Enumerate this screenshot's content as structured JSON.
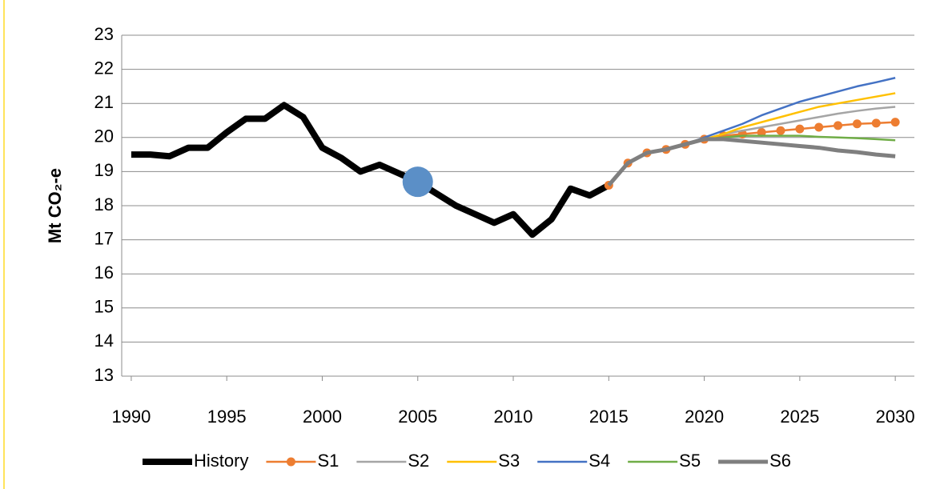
{
  "chart_data": {
    "type": "line",
    "y_label": "Mt CO₂-e",
    "xlim": [
      1989.5,
      2031
    ],
    "ylim": [
      13,
      23
    ],
    "xticks": [
      1990,
      1995,
      2000,
      2005,
      2010,
      2015,
      2020,
      2025,
      2030
    ],
    "yticks": [
      13,
      14,
      15,
      16,
      17,
      18,
      19,
      20,
      21,
      22,
      23
    ],
    "grid": true,
    "legend": "bottom",
    "series": [
      {
        "name": "History",
        "color": "#000000",
        "width": 8,
        "markers": false,
        "x": [
          1990,
          1991,
          1992,
          1993,
          1994,
          1995,
          1996,
          1997,
          1998,
          1999,
          2000,
          2001,
          2002,
          2003,
          2004,
          2005,
          2006,
          2007,
          2008,
          2009,
          2010,
          2011,
          2012,
          2013,
          2014,
          2015
        ],
        "values": [
          19.5,
          19.5,
          19.45,
          19.7,
          19.7,
          20.15,
          20.55,
          20.55,
          20.95,
          20.6,
          19.7,
          19.4,
          19.0,
          19.2,
          18.95,
          18.7,
          18.35,
          18.0,
          17.75,
          17.5,
          17.75,
          17.15,
          17.6,
          18.5,
          18.3,
          18.6
        ]
      },
      {
        "name": "S1",
        "color": "#ed7d31",
        "width": 2.5,
        "markers": true,
        "x": [
          2015,
          2016,
          2017,
          2018,
          2019,
          2020,
          2021,
          2022,
          2023,
          2024,
          2025,
          2026,
          2027,
          2028,
          2029,
          2030
        ],
        "values": [
          18.6,
          19.25,
          19.55,
          19.65,
          19.8,
          19.95,
          20.05,
          20.1,
          20.15,
          20.2,
          20.25,
          20.3,
          20.35,
          20.4,
          20.42,
          20.45
        ]
      },
      {
        "name": "S2",
        "color": "#a5a5a5",
        "width": 2.5,
        "markers": false,
        "x": [
          2015,
          2016,
          2017,
          2018,
          2019,
          2020,
          2021,
          2022,
          2023,
          2024,
          2025,
          2026,
          2027,
          2028,
          2029,
          2030
        ],
        "values": [
          18.6,
          19.25,
          19.55,
          19.65,
          19.8,
          19.95,
          20.1,
          20.2,
          20.3,
          20.4,
          20.5,
          20.6,
          20.7,
          20.78,
          20.85,
          20.9
        ]
      },
      {
        "name": "S3",
        "color": "#ffc000",
        "width": 2.5,
        "markers": false,
        "x": [
          2015,
          2016,
          2017,
          2018,
          2019,
          2020,
          2021,
          2022,
          2023,
          2024,
          2025,
          2026,
          2027,
          2028,
          2029,
          2030
        ],
        "values": [
          18.6,
          19.25,
          19.55,
          19.65,
          19.8,
          19.95,
          20.1,
          20.3,
          20.45,
          20.6,
          20.75,
          20.9,
          21.0,
          21.1,
          21.2,
          21.3
        ]
      },
      {
        "name": "S4",
        "color": "#4472c4",
        "width": 2.5,
        "markers": false,
        "x": [
          2015,
          2016,
          2017,
          2018,
          2019,
          2020,
          2021,
          2022,
          2023,
          2024,
          2025,
          2026,
          2027,
          2028,
          2029,
          2030
        ],
        "values": [
          18.6,
          19.25,
          19.55,
          19.65,
          19.8,
          20.0,
          20.2,
          20.4,
          20.65,
          20.85,
          21.05,
          21.2,
          21.35,
          21.5,
          21.62,
          21.75
        ]
      },
      {
        "name": "S5",
        "color": "#70ad47",
        "width": 2.5,
        "markers": false,
        "x": [
          2015,
          2016,
          2017,
          2018,
          2019,
          2020,
          2021,
          2022,
          2023,
          2024,
          2025,
          2026,
          2027,
          2028,
          2029,
          2030
        ],
        "values": [
          18.6,
          19.25,
          19.55,
          19.65,
          19.8,
          19.95,
          20.0,
          20.05,
          20.05,
          20.05,
          20.05,
          20.02,
          20.0,
          19.98,
          19.95,
          19.92
        ]
      },
      {
        "name": "S6",
        "color": "#7f7f7f",
        "width": 5,
        "markers": false,
        "x": [
          2015,
          2016,
          2017,
          2018,
          2019,
          2020,
          2021,
          2022,
          2023,
          2024,
          2025,
          2026,
          2027,
          2028,
          2029,
          2030
        ],
        "values": [
          18.6,
          19.25,
          19.55,
          19.65,
          19.8,
          19.95,
          19.95,
          19.9,
          19.85,
          19.8,
          19.75,
          19.7,
          19.62,
          19.57,
          19.5,
          19.45
        ]
      }
    ],
    "highlight": {
      "x": 2005,
      "y": 18.7,
      "color": "#5b8fc7"
    }
  }
}
